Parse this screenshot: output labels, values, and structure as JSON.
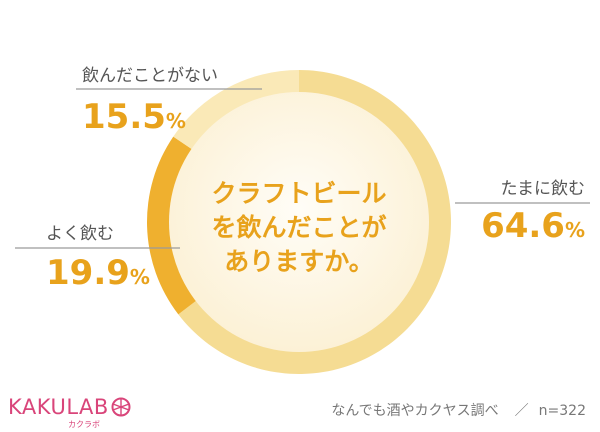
{
  "chart_data": {
    "type": "pie",
    "variant": "donut",
    "question_lines": [
      "クラフトビール",
      "を飲んだことが",
      "ありますか。"
    ],
    "slices": [
      {
        "label": "たまに飲む",
        "value": 64.6,
        "display": "64.6",
        "color": "#f5dc93"
      },
      {
        "label": "よく飲む",
        "value": 19.9,
        "display": "19.9",
        "color": "#efb02f"
      },
      {
        "label": "飲んだことがない",
        "value": 15.5,
        "display": "15.5",
        "color": "#fae9b7"
      }
    ],
    "unit": "%",
    "start": "12 o'clock, clockwise"
  },
  "branding": {
    "logo": "KAKULAB",
    "logo_sub": "カクラボ"
  },
  "source": {
    "text": "なんでも酒やカクヤス調べ",
    "slash": "／",
    "n": "n=322"
  }
}
